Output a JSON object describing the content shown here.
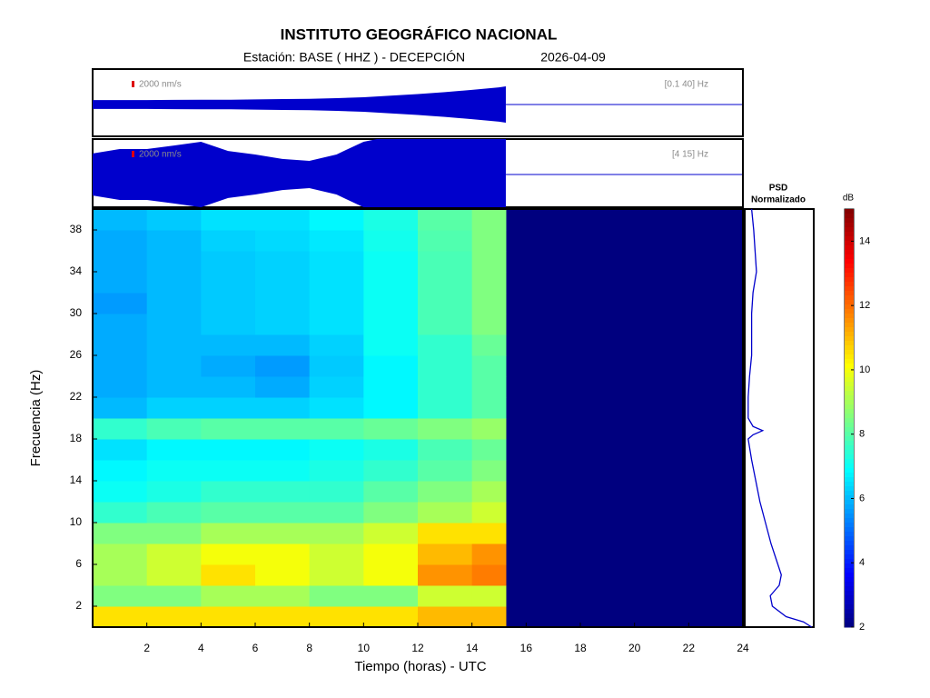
{
  "header": {
    "title": "INSTITUTO GEOGRÁFICO NACIONAL",
    "station": "Estación:  BASE ( HHZ ) - DECEPCIÓN",
    "date": "2026-04-09"
  },
  "traces": [
    {
      "band": "[0.1 40] Hz",
      "scale": {
        "value": 2000,
        "label": "2000 nm/s"
      },
      "x": [
        0,
        1,
        2,
        3,
        4,
        5,
        6,
        7,
        8,
        9,
        10,
        11,
        12,
        13,
        14,
        15,
        15.25
      ],
      "envelope": [
        1400,
        1400,
        1400,
        1450,
        1500,
        1500,
        1600,
        1700,
        1800,
        2000,
        2300,
        2800,
        3300,
        3900,
        4600,
        5400,
        5700
      ]
    },
    {
      "band": "[4 15] Hz",
      "scale": {
        "value": 2000,
        "label": "2000 nm/s"
      },
      "x": [
        0,
        1,
        2,
        3,
        4,
        5,
        6,
        7,
        8,
        9,
        10,
        11,
        12,
        13,
        14,
        15,
        15.25
      ],
      "envelope": [
        6600,
        8000,
        8000,
        9100,
        10300,
        7400,
        6300,
        4900,
        4300,
        6300,
        10300,
        12000,
        12000,
        12000,
        12000,
        12000,
        12000
      ]
    }
  ],
  "chart_data": {
    "type": "heatmap",
    "x_label": "Tiempo (horas) - UTC",
    "y_label": "Frecuencia  (Hz)",
    "x_edges": [
      0,
      2,
      4,
      6,
      8,
      10,
      12,
      14,
      15.25
    ],
    "y_edges": [
      0,
      2,
      4,
      6,
      8,
      10,
      12,
      14,
      16,
      18,
      20,
      22,
      24,
      26,
      28,
      30,
      32,
      34,
      36,
      38,
      40
    ],
    "z": [
      [
        10.5,
        10.5,
        10.5,
        10.5,
        10.5,
        10.5,
        11,
        11
      ],
      [
        8.5,
        8.5,
        9,
        9,
        8.5,
        8.5,
        9.5,
        9.5
      ],
      [
        9,
        9.5,
        10.5,
        10,
        9.5,
        10,
        11.5,
        11.8
      ],
      [
        9,
        9.5,
        10,
        10,
        9.5,
        10,
        11,
        11.5
      ],
      [
        8.5,
        8.5,
        9,
        9,
        9,
        9.5,
        10.5,
        10.5
      ],
      [
        7.5,
        7.8,
        8,
        8,
        8,
        8.5,
        9,
        9.5
      ],
      [
        7,
        7.2,
        7.5,
        7.5,
        7.5,
        8,
        8.5,
        9
      ],
      [
        6.8,
        7,
        7,
        7,
        7.2,
        7.5,
        8,
        8.5
      ],
      [
        6.5,
        6.8,
        6.8,
        6.8,
        7,
        7.2,
        7.8,
        8.2
      ],
      [
        7.5,
        7.8,
        8,
        8,
        8,
        8.2,
        8.5,
        8.8
      ],
      [
        6,
        6.3,
        6.3,
        6.3,
        6.5,
        6.8,
        7.5,
        8
      ],
      [
        5.8,
        6,
        6,
        5.8,
        6.3,
        6.8,
        7.5,
        8
      ],
      [
        5.8,
        6,
        5.8,
        5.6,
        6.2,
        6.8,
        7.5,
        8
      ],
      [
        5.8,
        6,
        6,
        6,
        6.3,
        7,
        7.5,
        8.2
      ],
      [
        5.8,
        6,
        6.2,
        6.3,
        6.5,
        7,
        7.8,
        8.5
      ],
      [
        5.6,
        6,
        6.2,
        6.3,
        6.5,
        7,
        7.8,
        8.5
      ],
      [
        5.8,
        6,
        6.2,
        6.3,
        6.5,
        7,
        7.8,
        8.5
      ],
      [
        5.8,
        6,
        6.2,
        6.3,
        6.5,
        7,
        7.8,
        8.5
      ],
      [
        5.8,
        6,
        6.3,
        6.4,
        6.6,
        7.1,
        7.9,
        8.5
      ],
      [
        6,
        6.2,
        6.5,
        6.5,
        6.8,
        7.2,
        8,
        8.5
      ]
    ],
    "xlim": [
      0,
      24
    ],
    "xticks": [
      2,
      4,
      6,
      8,
      10,
      12,
      14,
      16,
      18,
      20,
      22,
      24
    ],
    "ylim": [
      0,
      40
    ],
    "yticks": [
      2,
      6,
      10,
      14,
      18,
      22,
      26,
      30,
      34,
      38
    ],
    "colorbar": {
      "label": "dB",
      "lim": [
        2,
        15
      ],
      "ticks": [
        2,
        4,
        6,
        8,
        10,
        12,
        14
      ]
    },
    "psd": {
      "title_lines": [
        "PSD",
        "Normalizado"
      ],
      "color": "#0000cc",
      "xlim": [
        0,
        1
      ],
      "freq": [
        40,
        38,
        36,
        34,
        32,
        30,
        28,
        26,
        24,
        22,
        20,
        19.2,
        18.8,
        18.4,
        18,
        16,
        14,
        12,
        10,
        8,
        6,
        5,
        4,
        3,
        2,
        1,
        0.5,
        0
      ],
      "values": [
        0.1,
        0.13,
        0.15,
        0.17,
        0.12,
        0.1,
        0.1,
        0.1,
        0.07,
        0.05,
        0.05,
        0.12,
        0.26,
        0.12,
        0.05,
        0.1,
        0.16,
        0.22,
        0.3,
        0.38,
        0.48,
        0.53,
        0.5,
        0.37,
        0.4,
        0.6,
        0.85,
        0.97
      ]
    }
  }
}
